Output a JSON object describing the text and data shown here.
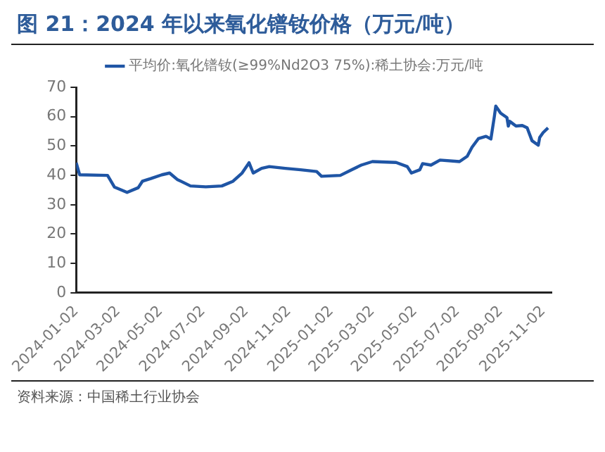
{
  "chart_data": {
    "type": "line",
    "title": "图 21：2024 年以来氧化镨钕价格（万元/吨）",
    "annotations": [
      "资料来源：中国稀土行业协会"
    ],
    "x": [
      "2024-01-02",
      "2024-01-07",
      "2024-02-16",
      "2024-02-26",
      "2024-03-15",
      "2024-03-31",
      "2024-04-06",
      "2024-04-18",
      "2024-05-04",
      "2024-05-15",
      "2024-05-26",
      "2024-06-14",
      "2024-07-06",
      "2024-07-29",
      "2024-08-14",
      "2024-08-27",
      "2024-09-06",
      "2024-09-12",
      "2024-09-24",
      "2024-10-05",
      "2024-10-28",
      "2024-11-19",
      "2024-12-12",
      "2024-12-19",
      "2025-01-15",
      "2025-01-31",
      "2025-02-14",
      "2025-03-02",
      "2025-04-05",
      "2025-04-21",
      "2025-04-27",
      "2025-05-09",
      "2025-05-13",
      "2025-05-25",
      "2025-06-07",
      "2025-07-05",
      "2025-07-16",
      "2025-07-23",
      "2025-08-01",
      "2025-08-12",
      "2025-08-19",
      "2025-08-24",
      "2025-08-26",
      "2025-09-02",
      "2025-09-11",
      "2025-09-13",
      "2025-09-15",
      "2025-09-24",
      "2025-10-03",
      "2025-10-10",
      "2025-10-17",
      "2025-10-26",
      "2025-10-28",
      "2025-11-02",
      "2025-11-09"
    ],
    "series": [
      {
        "name": "平均价:氧化镨钕(≥99%Nd2O3 75%):稀土协会:万元/吨",
        "color": "#1f55a5",
        "values": [
          44.3,
          40.2,
          40,
          36,
          34.2,
          35.8,
          38,
          38.9,
          40.2,
          40.8,
          38.6,
          36.4,
          36.1,
          36.4,
          38,
          40.8,
          44.3,
          40.8,
          42.4,
          43,
          42.4,
          41.9,
          41.3,
          39.7,
          40,
          41.9,
          43.5,
          44.7,
          44.4,
          43,
          40.8,
          41.9,
          44,
          43.5,
          45.2,
          44.7,
          46.5,
          49.6,
          52.5,
          53.3,
          52.4,
          60.1,
          63.6,
          61.2,
          59.7,
          56.8,
          58.4,
          56.8,
          57,
          56.2,
          51.8,
          50.3,
          52.9,
          54.6,
          56.2
        ]
      }
    ],
    "xlim": [
      "2024-01-02",
      "2025-11-14"
    ],
    "xticks": [
      "2024-01-02",
      "2024-03-02",
      "2024-05-02",
      "2024-07-02",
      "2024-09-02",
      "2024-11-02",
      "2025-01-02",
      "2025-03-02",
      "2025-05-02",
      "2025-07-02",
      "2025-09-02",
      "2025-11-02"
    ],
    "ylim": [
      0,
      70
    ],
    "yticks": [
      0,
      10,
      20,
      30,
      40,
      50,
      60,
      70
    ],
    "grid": false,
    "legend": "top",
    "marker": "none",
    "line_style": "solid"
  }
}
